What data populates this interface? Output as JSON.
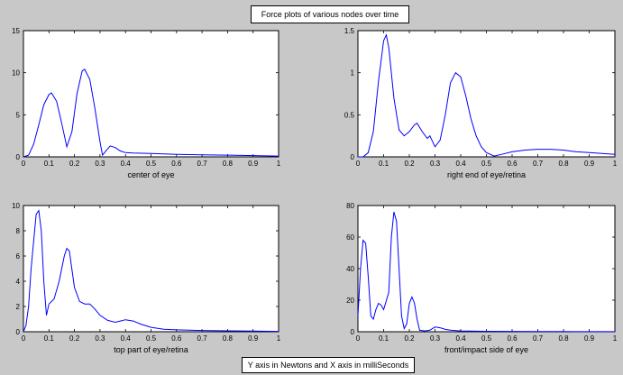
{
  "figure": {
    "title": "Force plots of various nodes over time",
    "note": "Y axis in Newtons and X axis in milliSeconds",
    "background": "#c8c8c8",
    "line_color": "#0000ff"
  },
  "chart_data": [
    {
      "type": "line",
      "xlabel": "center of eye",
      "xlim": [
        0,
        1
      ],
      "ylim": [
        0,
        15
      ],
      "xticks": [
        0,
        0.1,
        0.2,
        0.3,
        0.4,
        0.5,
        0.6,
        0.7,
        0.8,
        0.9,
        1
      ],
      "yticks": [
        0,
        5,
        10,
        15
      ],
      "grid": false,
      "series": [
        {
          "x": [
            0,
            0.02,
            0.04,
            0.06,
            0.08,
            0.1,
            0.11,
            0.13,
            0.15,
            0.17,
            0.19,
            0.21,
            0.23,
            0.24,
            0.26,
            0.28,
            0.3,
            0.31,
            0.32,
            0.34,
            0.36,
            0.38,
            0.4,
            0.43,
            0.5,
            0.6,
            0.7,
            0.8,
            0.9,
            1.0
          ],
          "y": [
            0,
            0.2,
            1.5,
            3.8,
            6.2,
            7.4,
            7.6,
            6.6,
            4.0,
            1.2,
            3.0,
            7.5,
            10.2,
            10.4,
            9.2,
            5.8,
            1.8,
            0.2,
            0.6,
            1.3,
            1.1,
            0.7,
            0.5,
            0.45,
            0.4,
            0.3,
            0.25,
            0.2,
            0.15,
            0.1
          ]
        }
      ]
    },
    {
      "type": "line",
      "xlabel": "right end of eye/retina",
      "xlim": [
        0,
        1
      ],
      "ylim": [
        0,
        1.5
      ],
      "xticks": [
        0,
        0.1,
        0.2,
        0.3,
        0.4,
        0.5,
        0.6,
        0.7,
        0.8,
        0.9,
        1
      ],
      "yticks": [
        0,
        0.5,
        1,
        1.5
      ],
      "ytick_labels": [
        "0",
        "0.5",
        "1",
        "1.5"
      ],
      "grid": false,
      "series": [
        {
          "x": [
            0,
            0.02,
            0.04,
            0.06,
            0.08,
            0.1,
            0.11,
            0.12,
            0.14,
            0.16,
            0.18,
            0.2,
            0.22,
            0.23,
            0.25,
            0.27,
            0.28,
            0.3,
            0.32,
            0.34,
            0.36,
            0.38,
            0.4,
            0.42,
            0.44,
            0.46,
            0.48,
            0.5,
            0.53,
            0.56,
            0.6,
            0.65,
            0.7,
            0.75,
            0.8,
            0.85,
            0.9,
            0.95,
            1.0
          ],
          "y": [
            0,
            0.0,
            0.05,
            0.3,
            0.9,
            1.38,
            1.45,
            1.3,
            0.7,
            0.32,
            0.25,
            0.3,
            0.38,
            0.4,
            0.3,
            0.22,
            0.25,
            0.12,
            0.2,
            0.5,
            0.88,
            1.0,
            0.95,
            0.72,
            0.45,
            0.25,
            0.12,
            0.05,
            0.01,
            0.03,
            0.06,
            0.08,
            0.09,
            0.09,
            0.08,
            0.06,
            0.05,
            0.04,
            0.03
          ]
        }
      ]
    },
    {
      "type": "line",
      "xlabel": "top part of eye/retina",
      "xlim": [
        0,
        1
      ],
      "ylim": [
        0,
        10
      ],
      "xticks": [
        0,
        0.1,
        0.2,
        0.3,
        0.4,
        0.5,
        0.6,
        0.7,
        0.8,
        0.9,
        1
      ],
      "yticks": [
        0,
        2,
        4,
        6,
        8,
        10
      ],
      "grid": false,
      "series": [
        {
          "x": [
            0,
            0.01,
            0.02,
            0.03,
            0.05,
            0.06,
            0.07,
            0.08,
            0.09,
            0.1,
            0.12,
            0.14,
            0.16,
            0.17,
            0.18,
            0.2,
            0.22,
            0.24,
            0.26,
            0.28,
            0.3,
            0.33,
            0.36,
            0.38,
            0.4,
            0.43,
            0.46,
            0.5,
            0.55,
            0.6,
            0.7,
            0.8,
            0.9,
            1.0
          ],
          "y": [
            0,
            0.5,
            2.0,
            5.0,
            9.3,
            9.6,
            8.0,
            4.0,
            1.3,
            2.2,
            2.6,
            4.0,
            6.0,
            6.6,
            6.4,
            3.5,
            2.4,
            2.2,
            2.2,
            1.8,
            1.3,
            0.9,
            0.75,
            0.85,
            0.95,
            0.85,
            0.6,
            0.35,
            0.2,
            0.15,
            0.1,
            0.07,
            0.05,
            0.03
          ]
        }
      ]
    },
    {
      "type": "line",
      "xlabel": "front/impact side of eye",
      "xlim": [
        0,
        1
      ],
      "ylim": [
        0,
        80
      ],
      "xticks": [
        0,
        0.1,
        0.2,
        0.3,
        0.4,
        0.5,
        0.6,
        0.7,
        0.8,
        0.9,
        1
      ],
      "yticks": [
        0,
        20,
        40,
        60,
        80
      ],
      "grid": false,
      "series": [
        {
          "x": [
            0,
            0.01,
            0.02,
            0.03,
            0.04,
            0.05,
            0.06,
            0.07,
            0.08,
            0.09,
            0.1,
            0.12,
            0.13,
            0.14,
            0.15,
            0.16,
            0.17,
            0.18,
            0.19,
            0.2,
            0.21,
            0.22,
            0.23,
            0.24,
            0.26,
            0.28,
            0.3,
            0.32,
            0.34,
            0.36,
            0.4,
            0.5,
            0.6,
            0.7,
            0.8,
            0.9,
            1.0
          ],
          "y": [
            10,
            40,
            58,
            56,
            35,
            10,
            8,
            14,
            18,
            17,
            14,
            25,
            60,
            76,
            70,
            40,
            10,
            2,
            5,
            18,
            22,
            18,
            8,
            1,
            0.5,
            1,
            3,
            2.5,
            1.5,
            1,
            0.5,
            0.3,
            0.2,
            0.1,
            0.1,
            0.05,
            0.05
          ]
        }
      ]
    }
  ]
}
